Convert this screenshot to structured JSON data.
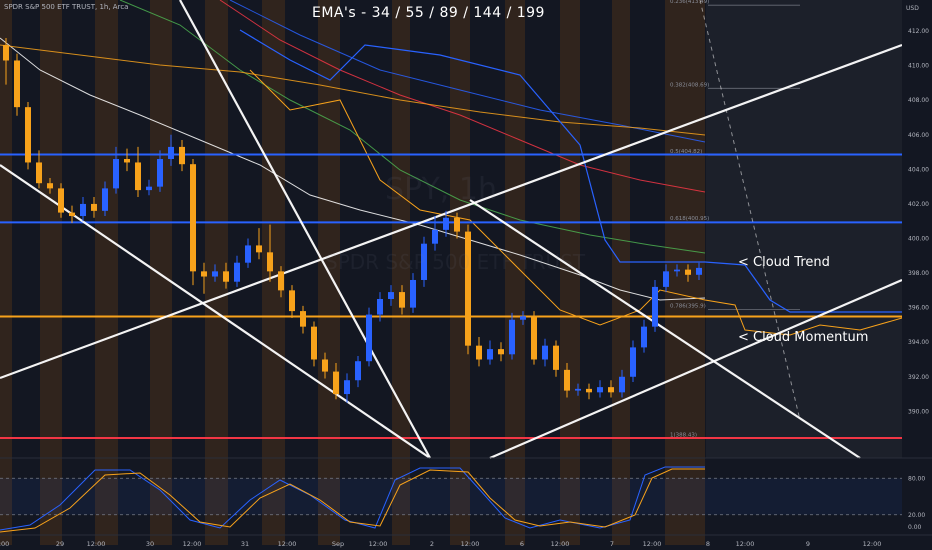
{
  "header": {
    "instrument": "SPDR S&P 500 ETF TRUST, 1h, Arca",
    "title": "EMA's  - 34 / 55 / 89 / 144 / 199",
    "watermark_ticker": "SPY, 1h",
    "watermark_name": "SPDR S&P 500 ETF TRUST"
  },
  "annotations": {
    "cloud_trend": "< Cloud Trend",
    "cloud_momentum": "< Cloud Momentum"
  },
  "colors": {
    "background": "#131722",
    "up_candle": "#2962ff",
    "down_candle": "#f7a21b",
    "blue_level": "#2962ff",
    "orange_level": "#f7a21b",
    "red_level": "#f23645",
    "ema_34": "#ffffff",
    "ema_55": "#4caf50",
    "ema_89": "#f23645",
    "ema_144": "#2962ff",
    "ema_199": "#f7a21b",
    "trendline": "#ffffff"
  },
  "chart_data": {
    "type": "candlestick",
    "currency": "USD",
    "x_ticks": [
      "2:00",
      "29",
      "12:00",
      "30",
      "12:00",
      "31",
      "12:00",
      "Sep",
      "12:00",
      "2",
      "12:00",
      "6",
      "12:00",
      "7",
      "12:00",
      "8",
      "12:00",
      "9",
      "12:00"
    ],
    "y_ticks": [
      390.0,
      392.0,
      394.0,
      396.0,
      398.0,
      400.0,
      402.0,
      404.0,
      406.0,
      408.0,
      410.0,
      412.0
    ],
    "ylim": [
      387.3,
      413.8
    ],
    "horizontal_levels": [
      {
        "price": 404.86,
        "label": "404.86",
        "color": "blue"
      },
      {
        "price": 400.93,
        "label": "400.93",
        "color": "blue"
      },
      {
        "price": 395.49,
        "label": "395.49",
        "color": "orange"
      },
      {
        "price": 388.46,
        "label": "388.46",
        "color": "red"
      }
    ],
    "fib_levels": [
      {
        "price": 413.5,
        "label": "0.236(413.49)"
      },
      {
        "price": 408.69,
        "label": "0.382(408.69)"
      },
      {
        "price": 404.82,
        "label": "0.5(404.82)"
      },
      {
        "price": 400.95,
        "label": "0.618(400.95)"
      },
      {
        "price": 395.9,
        "label": "0.786(395.9)"
      },
      {
        "price": 388.43,
        "label": "1(388.43)"
      }
    ],
    "candles": [
      [
        411.2,
        410.3,
        411.6,
        408.9
      ],
      [
        410.3,
        407.6,
        410.7,
        407.1
      ],
      [
        407.6,
        404.4,
        407.9,
        404.0
      ],
      [
        404.4,
        403.2,
        405.1,
        402.9
      ],
      [
        403.2,
        402.9,
        403.5,
        402.6
      ],
      [
        402.9,
        401.5,
        403.2,
        401.2
      ],
      [
        401.5,
        401.3,
        401.9,
        400.9
      ],
      [
        401.3,
        402.0,
        402.4,
        401.0
      ],
      [
        402.0,
        401.6,
        402.4,
        401.2
      ],
      [
        401.6,
        402.9,
        403.3,
        401.3
      ],
      [
        402.9,
        404.6,
        405.3,
        402.6
      ],
      [
        404.6,
        404.4,
        405.2,
        403.9
      ],
      [
        404.4,
        402.8,
        405.3,
        402.4
      ],
      [
        402.8,
        403.0,
        403.4,
        402.5
      ],
      [
        403.0,
        404.6,
        405.1,
        402.7
      ],
      [
        404.6,
        405.3,
        406.0,
        404.2
      ],
      [
        405.3,
        404.3,
        405.7,
        403.9
      ],
      [
        404.3,
        398.1,
        404.6,
        397.3
      ],
      [
        398.1,
        397.8,
        398.6,
        396.8
      ],
      [
        397.8,
        398.1,
        398.5,
        397.5
      ],
      [
        398.1,
        397.5,
        398.6,
        397.1
      ],
      [
        397.5,
        398.6,
        399.0,
        397.2
      ],
      [
        398.6,
        399.6,
        400.0,
        398.3
      ],
      [
        399.6,
        399.2,
        400.6,
        398.8
      ],
      [
        399.2,
        398.1,
        400.8,
        397.5
      ],
      [
        398.1,
        397.0,
        398.4,
        396.6
      ],
      [
        397.0,
        395.8,
        397.3,
        395.4
      ],
      [
        395.8,
        394.9,
        396.1,
        394.5
      ],
      [
        394.9,
        393.0,
        395.2,
        392.6
      ],
      [
        393.0,
        392.3,
        393.4,
        391.9
      ],
      [
        392.3,
        391.0,
        392.8,
        390.7
      ],
      [
        391.0,
        391.8,
        392.2,
        390.5
      ],
      [
        391.8,
        392.9,
        393.2,
        391.4
      ],
      [
        392.9,
        395.6,
        396.0,
        392.6
      ],
      [
        395.6,
        396.5,
        396.9,
        395.2
      ],
      [
        396.5,
        396.9,
        397.3,
        396.1
      ],
      [
        396.9,
        396.0,
        397.3,
        395.6
      ],
      [
        396.0,
        397.6,
        398.0,
        395.7
      ],
      [
        397.6,
        399.7,
        400.1,
        397.2
      ],
      [
        399.7,
        400.5,
        401.3,
        399.3
      ],
      [
        400.5,
        401.2,
        401.6,
        400.1
      ],
      [
        401.2,
        400.4,
        401.5,
        400.0
      ],
      [
        400.4,
        393.8,
        400.8,
        393.3
      ],
      [
        393.8,
        393.0,
        394.3,
        392.6
      ],
      [
        393.0,
        393.6,
        394.1,
        392.7
      ],
      [
        393.6,
        393.3,
        394.0,
        392.9
      ],
      [
        393.3,
        395.3,
        395.7,
        393.0
      ],
      [
        395.3,
        395.5,
        395.8,
        395.0
      ],
      [
        395.5,
        393.0,
        395.8,
        392.7
      ],
      [
        393.0,
        393.8,
        394.2,
        392.6
      ],
      [
        393.8,
        392.4,
        394.1,
        392.0
      ],
      [
        392.4,
        391.2,
        392.8,
        390.8
      ],
      [
        391.2,
        391.3,
        391.6,
        390.9
      ],
      [
        391.3,
        391.1,
        391.6,
        390.7
      ],
      [
        391.1,
        391.4,
        391.8,
        390.8
      ],
      [
        391.4,
        391.1,
        391.8,
        390.8
      ],
      [
        391.1,
        392.0,
        392.4,
        390.8
      ],
      [
        392.0,
        393.7,
        394.1,
        391.7
      ],
      [
        393.7,
        394.9,
        395.3,
        393.4
      ],
      [
        394.9,
        397.2,
        397.6,
        394.6
      ],
      [
        397.2,
        398.1,
        398.5,
        396.9
      ],
      [
        398.1,
        398.2,
        398.5,
        397.8
      ],
      [
        398.2,
        397.9,
        398.5,
        397.5
      ],
      [
        397.9,
        398.3,
        398.6,
        397.6
      ]
    ],
    "ema_series": [
      {
        "name": "34"
      },
      {
        "name": "55"
      },
      {
        "name": "89"
      },
      {
        "name": "144"
      },
      {
        "name": "199"
      }
    ],
    "oscillator": {
      "type": "stochastic",
      "y_ticks": [
        0.0,
        20.0,
        80.0
      ],
      "ylim": [
        -10,
        110
      ]
    }
  }
}
